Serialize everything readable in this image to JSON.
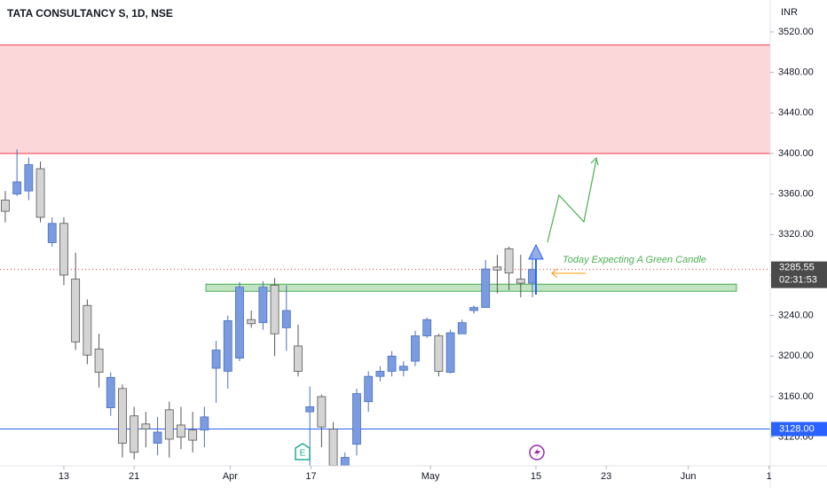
{
  "chart_data": {
    "type": "candlestick",
    "title": "TATA CONSULTANCY S, 1D, NSE",
    "currency": "INR",
    "countdown": "02:31:53",
    "annotation": "Today Expecting A Green Candle",
    "up_color": "#7b9be0",
    "down_color": "#d4d4d4",
    "x": [
      0,
      1,
      2,
      3,
      4,
      5,
      6,
      7,
      8,
      9,
      10,
      11,
      12,
      13,
      14,
      15,
      16,
      17,
      18,
      19,
      20,
      21,
      22,
      23,
      24,
      25,
      26,
      27,
      28,
      29,
      30,
      31,
      32,
      33,
      34,
      35,
      36,
      37,
      38,
      39,
      40,
      41,
      42,
      43,
      44,
      45
    ],
    "open": [
      3354,
      3360,
      3363,
      3385,
      3312,
      3331,
      3276,
      3250,
      3207,
      3149,
      3168,
      3141,
      3133,
      3114,
      3147,
      3132,
      3127,
      3127,
      3188,
      3185,
      3198,
      3236,
      3233,
      3270,
      3228,
      3210,
      3145,
      3160,
      3128,
      3092,
      3113,
      3155,
      3180,
      3185,
      3186,
      3195,
      3220,
      3220,
      3184,
      3222,
      3245,
      3248,
      3288,
      3306,
      3276,
      3272
    ],
    "high": [
      3363,
      3404,
      3396,
      3392,
      3337,
      3337,
      3302,
      3256,
      3222,
      3184,
      3172,
      3150,
      3145,
      3140,
      3155,
      3150,
      3145,
      3150,
      3215,
      3240,
      3273,
      3245,
      3274,
      3277,
      3270,
      3231,
      3170,
      3162,
      3135,
      3105,
      3168,
      3185,
      3190,
      3205,
      3195,
      3225,
      3238,
      3222,
      3226,
      3236,
      3250,
      3295,
      3300,
      3308,
      3300,
      3300
    ],
    "low": [
      3332,
      3358,
      3354,
      3332,
      3308,
      3270,
      3206,
      3192,
      3169,
      3141,
      3100,
      3098,
      3110,
      3102,
      3100,
      3108,
      3105,
      3110,
      3154,
      3168,
      3195,
      3228,
      3226,
      3200,
      3205,
      3180,
      3085,
      3110,
      3085,
      3088,
      3102,
      3145,
      3175,
      3180,
      3180,
      3190,
      3218,
      3180,
      3183,
      3222,
      3242,
      3248,
      3262,
      3265,
      3258,
      3258
    ],
    "close": [
      3343,
      3372,
      3389,
      3337,
      3331,
      3280,
      3214,
      3201,
      3184,
      3179,
      3114,
      3105,
      3128,
      3125,
      3118,
      3120,
      3117,
      3140,
      3206,
      3235,
      3268,
      3232,
      3268,
      3222,
      3245,
      3185,
      3150,
      3130,
      3092,
      3100,
      3163,
      3180,
      3185,
      3200,
      3190,
      3220,
      3236,
      3185,
      3223,
      3233,
      3248,
      3286,
      3285,
      3282,
      3272,
      3285.55
    ],
    "xlim": [
      -0.45,
      65.3
    ],
    "ylim": [
      3091.7,
      3551.5
    ],
    "xticks": [
      {
        "value": 5,
        "label": "13"
      },
      {
        "value": 11,
        "label": "21"
      },
      {
        "value": 19.2,
        "label": "Apr"
      },
      {
        "value": 26.1,
        "label": "17"
      },
      {
        "value": 36.3,
        "label": "May"
      },
      {
        "value": 45.3,
        "label": "15"
      },
      {
        "value": 51.3,
        "label": "23"
      },
      {
        "value": 58.3,
        "label": "Jun"
      },
      {
        "value": 65.2,
        "label": "1"
      }
    ],
    "yticks": [
      {
        "value": 3120,
        "label": "3120.00"
      },
      {
        "value": 3160,
        "label": "3160.00"
      },
      {
        "value": 3200,
        "label": "3200.00"
      },
      {
        "value": 3240,
        "label": "3240.00"
      },
      {
        "value": 3280,
        "label": "3280.00"
      },
      {
        "value": 3320,
        "label": "3320.00"
      },
      {
        "value": 3360,
        "label": "3360.00"
      },
      {
        "value": 3400,
        "label": "3400.00"
      },
      {
        "value": 3440,
        "label": "3440.00"
      },
      {
        "value": 3480,
        "label": "3480.00"
      },
      {
        "value": 3520,
        "label": "3520.00"
      }
    ],
    "resistance_zone": {
      "from": 3400,
      "to": 3507,
      "color": "#f23645"
    },
    "support_zone": {
      "from": 3264,
      "to": 3271,
      "color": "#4caf50"
    },
    "hline": {
      "value": 3128,
      "label": "3128.00",
      "color": "#2962ff"
    }
  }
}
